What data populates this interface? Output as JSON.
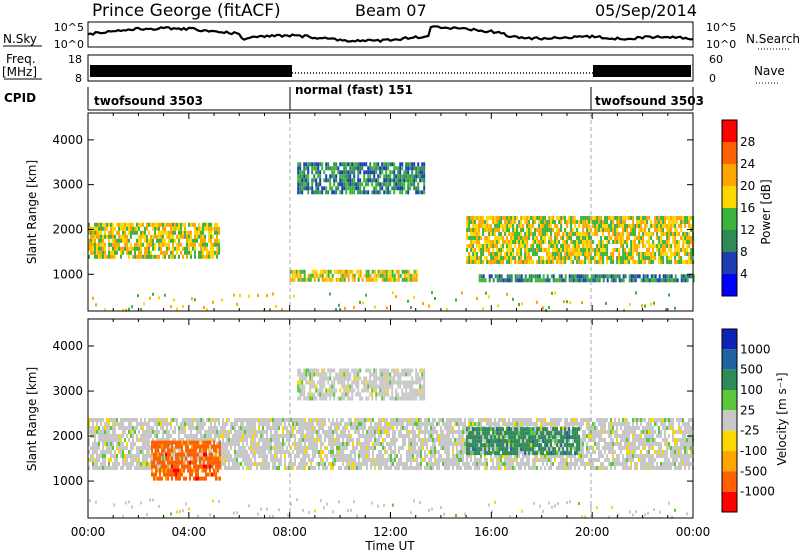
{
  "header": {
    "station": "Prince George (fitACF)",
    "beam": "Beam 07",
    "date": "05/Sep/2014"
  },
  "sky_panel": {
    "left_label": "N.Sky",
    "right_label": "N.Search",
    "left_ticks": [
      "10^5",
      "10^0"
    ],
    "right_ticks": [
      "10^5",
      "10^0"
    ]
  },
  "freq_panel": {
    "left_label_1": "Freq.",
    "left_label_2": "[MHz]",
    "right_label": "Nave",
    "left_ticks": [
      "18",
      "8"
    ],
    "right_ticks": [
      "60",
      "0"
    ]
  },
  "cpid": {
    "label": "CPID",
    "segments": [
      {
        "text": "twofsound 3503",
        "start_hour": 0,
        "end_hour": 8
      },
      {
        "text": "normal (fast) 151",
        "start_hour": 8,
        "end_hour": 20
      },
      {
        "text": "twofsound 3503",
        "start_hour": 20,
        "end_hour": 24
      }
    ]
  },
  "power_panel": {
    "ylabel": "Slant Range [km]",
    "yticks": [
      1000,
      2000,
      3000,
      4000
    ],
    "colorbar_label": "Power [dB]",
    "colorbar_ticks": [
      4,
      8,
      12,
      16,
      20,
      24,
      28
    ],
    "colors": [
      "#0000ff",
      "#1e3cb4",
      "#2e8b57",
      "#3cb43c",
      "#ffd700",
      "#ffa500",
      "#ff6000",
      "#ff0000"
    ]
  },
  "velocity_panel": {
    "ylabel": "Slant Range [km]",
    "yticks": [
      1000,
      2000,
      3000,
      4000
    ],
    "colorbar_label": "Velocity [m s⁻¹]",
    "colorbar_ticks": [
      "1000",
      "500",
      "100",
      "25",
      "-25",
      "-100",
      "-500",
      "-1000"
    ],
    "colors": [
      "#0b24b4",
      "#1e64a0",
      "#2e8b57",
      "#5ac83c",
      "#c8c8c8",
      "#ffd700",
      "#ffa500",
      "#ff6000",
      "#ff0000"
    ]
  },
  "x_axis": {
    "label": "Time UT",
    "ticks": [
      "00:00",
      "04:00",
      "08:00",
      "12:00",
      "16:00",
      "20:00",
      "00:00"
    ]
  },
  "chart_data": {
    "type": "heatmap",
    "title": "Prince George (fitACF) Beam 07 05/Sep/2014",
    "xlabel": "Time UT",
    "ylabel": "Slant Range [km]",
    "xlim_hours": [
      0,
      24
    ],
    "ylim_km": [
      180,
      4600
    ],
    "mode_changes_hours": [
      8,
      20
    ],
    "power_bands": [
      {
        "t0": 0,
        "t1": 5.2,
        "range_km": [
          1350,
          2150
        ],
        "power_db": 20
      },
      {
        "t0": 8.3,
        "t1": 13.3,
        "range_km": [
          2800,
          3500
        ],
        "power_db": 10
      },
      {
        "t0": 8.0,
        "t1": 13.0,
        "range_km": [
          850,
          1100
        ],
        "power_db": 18
      },
      {
        "t0": 15.0,
        "t1": 24,
        "range_km": [
          1300,
          2300
        ],
        "power_db": 18
      },
      {
        "t0": 15.5,
        "t1": 24,
        "range_km": [
          850,
          1000
        ],
        "power_db": 12
      }
    ],
    "velocity_bands": [
      {
        "t0": 0,
        "t1": 24,
        "range_km": [
          1300,
          2400
        ],
        "velocity_ms": 0
      },
      {
        "t0": 2.5,
        "t1": 5.2,
        "range_km": [
          1100,
          1900
        ],
        "velocity_ms": -500
      },
      {
        "t0": 15.0,
        "t1": 19.5,
        "range_km": [
          1600,
          2200
        ],
        "velocity_ms": 100
      },
      {
        "t0": 8.3,
        "t1": 13.3,
        "range_km": [
          2800,
          3500
        ],
        "velocity_ms": 0
      }
    ]
  }
}
